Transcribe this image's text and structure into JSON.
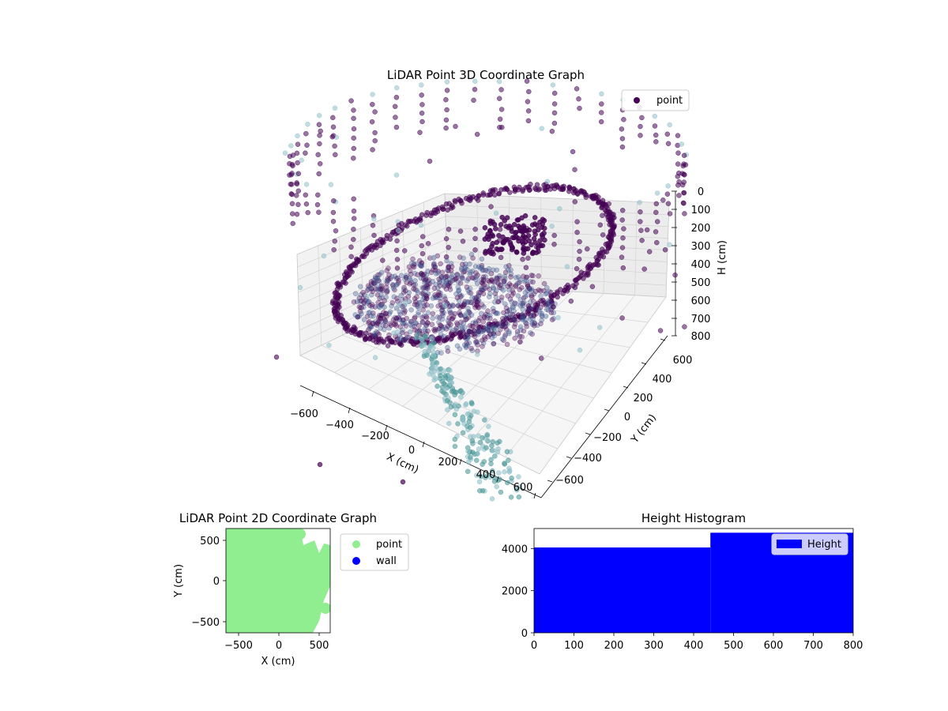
{
  "figure": {
    "colors": {
      "point_dark": "#440154",
      "point_mid": "#3b528b",
      "point_teal": "#4f9a9a",
      "point_light": "#8fc0c8",
      "green": "#90ee90",
      "wall": "#0000ff",
      "hist": "#0000ff",
      "pane": "#f2f2f2"
    }
  },
  "chart_data": [
    {
      "type": "scatter",
      "projection": "3d",
      "title": "LiDAR Point 3D Coordinate Graph",
      "xlabel": "X (cm)",
      "ylabel": "Y (cm)",
      "zlabel": "H (cm)",
      "x_ticks": [
        "−600",
        "−400",
        "−200",
        "0",
        "200",
        "400",
        "600"
      ],
      "y_ticks": [
        "−600",
        "−400",
        "−200",
        "0",
        "200",
        "400",
        "600"
      ],
      "z_ticks": [
        "0",
        "100",
        "200",
        "300",
        "400",
        "500",
        "600",
        "700",
        "800"
      ],
      "xlim": [
        -700,
        700
      ],
      "ylim": [
        -700,
        700
      ],
      "zlim": [
        0,
        800
      ],
      "z_inverted": true,
      "grid": true,
      "legend": {
        "entries": [
          "point"
        ],
        "placement": "top-right"
      },
      "series": [
        {
          "name": "point",
          "colormap": "viridis",
          "color_by": "height",
          "alpha": 0.55
        }
      ]
    },
    {
      "type": "scatter",
      "title": "LiDAR Point 2D Coordinate Graph",
      "xlabel": "X (cm)",
      "ylabel": "Y (cm)",
      "x_ticks": [
        "−500",
        "0",
        "500"
      ],
      "y_ticks": [
        "500",
        "0",
        "−500"
      ],
      "xlim": [
        -640,
        640
      ],
      "ylim": [
        -620,
        640
      ],
      "legend": {
        "entries": [
          "point",
          "wall"
        ],
        "placement": "outside-right"
      },
      "series": [
        {
          "name": "point",
          "color": "#90ee90",
          "x_range": [
            -640,
            640
          ],
          "y_range": [
            -600,
            600
          ]
        },
        {
          "name": "wall",
          "color": "#0000ff",
          "points": []
        }
      ]
    },
    {
      "type": "bar",
      "title": "Height Histogram",
      "xlabel": "",
      "ylabel": "",
      "x_ticks": [
        "0",
        "100",
        "200",
        "300",
        "400",
        "500",
        "600",
        "700",
        "800"
      ],
      "y_ticks": [
        "0",
        "2000",
        "4000"
      ],
      "xlim": [
        0,
        800
      ],
      "ylim": [
        0,
        4950
      ],
      "legend": {
        "entries": [
          "Height"
        ],
        "placement": "top-right"
      },
      "bins": [
        {
          "from": 0,
          "to": 442,
          "count": 4050
        },
        {
          "from": 442,
          "to": 800,
          "count": 4750
        }
      ],
      "series": [
        {
          "name": "Height"
        }
      ]
    }
  ]
}
